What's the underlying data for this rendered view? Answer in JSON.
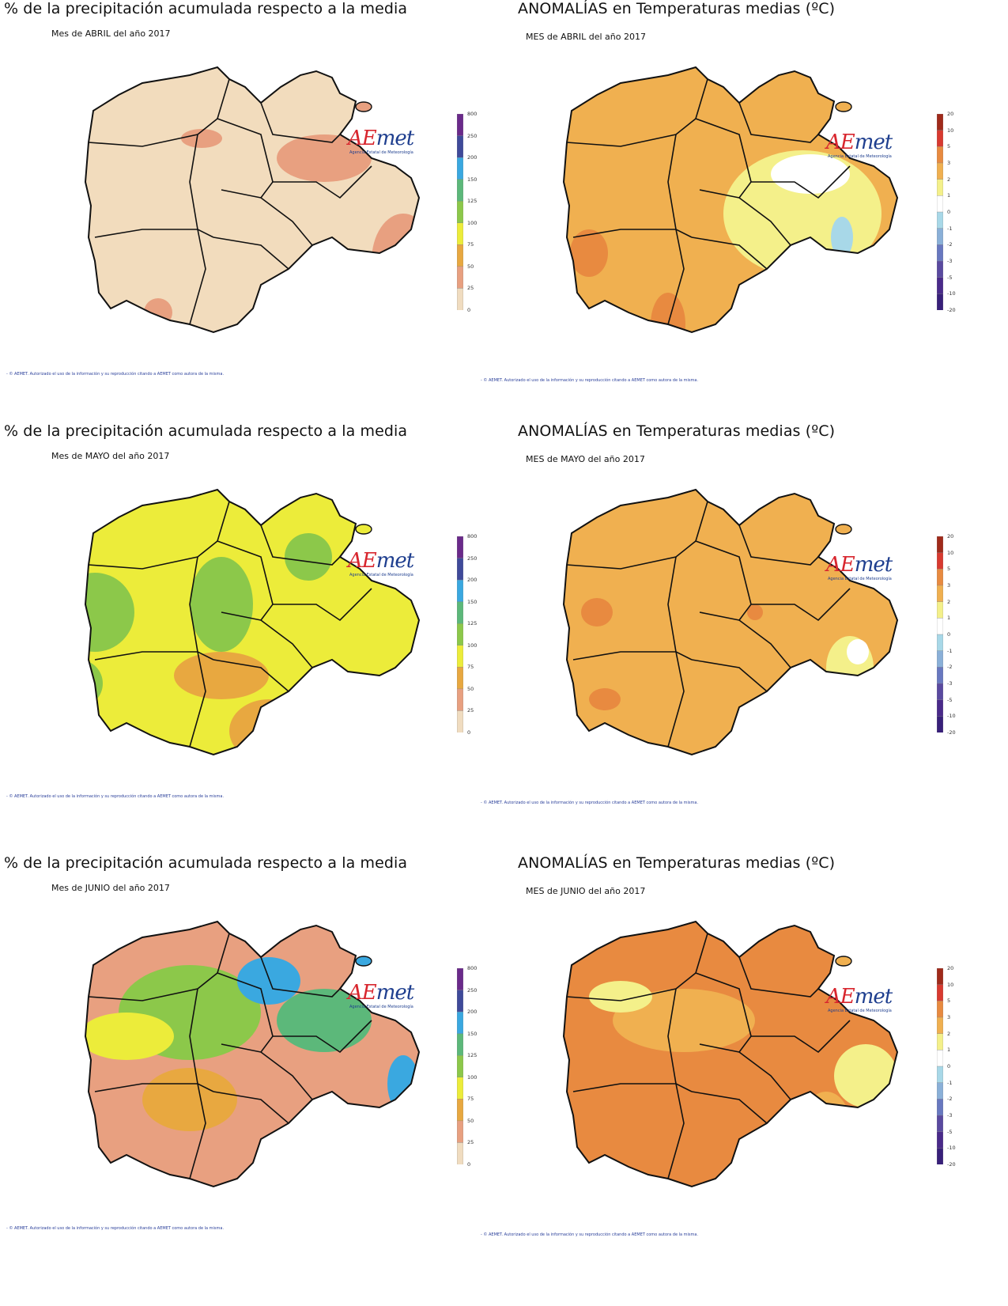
{
  "brand": {
    "logo": "AEmet",
    "tagline": "Agencia Estatal de Meteorología"
  },
  "footer": "- © AEMET. Autorizado el uso de la información y su reproducción citando a AEMET como autora de la misma.",
  "precip_legend": {
    "labels": [
      "800",
      "250",
      "200",
      "150",
      "125",
      "100",
      "75",
      "50",
      "25",
      "0"
    ],
    "colors": [
      "#6a2a8a",
      "#3f4a9a",
      "#3aa8e0",
      "#5cb87a",
      "#8cc84a",
      "#ecec3a",
      "#e8a840",
      "#e8a080",
      "#f0dcc0"
    ]
  },
  "temp_legend": {
    "labels": [
      "20",
      "10",
      "5",
      "3",
      "2",
      "1",
      "0",
      "-1",
      "-2",
      "-3",
      "-5",
      "-10",
      "-20"
    ],
    "colors": [
      "#a02a1a",
      "#d83a30",
      "#e88a40",
      "#f0b050",
      "#f4f08a",
      "#ffffff",
      "#a8d8e8",
      "#8ab0d8",
      "#6878c0",
      "#5a4aa0",
      "#4a2a8a",
      "#38207a"
    ]
  },
  "panels": [
    {
      "id": "prec-abril",
      "title": "% de la precipitación acumulada respecto a la media",
      "subtitle": "Mes de ABRIL del año 2017",
      "kind": "precip",
      "base": "#f2dcbd",
      "blobs": [
        [
          "#e8a080",
          350,
          140,
          60,
          30
        ],
        [
          "#e8a080",
          450,
          270,
          40,
          60
        ],
        [
          "#e8a080",
          140,
          335,
          18,
          18
        ],
        [
          "#e8a080",
          300,
          380,
          20,
          14
        ],
        [
          "#e8a080",
          195,
          115,
          26,
          12
        ]
      ]
    },
    {
      "id": "temp-abril",
      "title": "ANOMALÍAS en Temperaturas medias (ºC)",
      "subtitle": "MES de ABRIL del año 2017",
      "kind": "temp",
      "base": "#f0b050",
      "blobs": [
        [
          "#f4f08a",
          350,
          210,
          100,
          80
        ],
        [
          "#ffffff",
          360,
          160,
          50,
          25
        ],
        [
          "#a8d8e8",
          400,
          240,
          14,
          26
        ],
        [
          "#e88a40",
          180,
          350,
          22,
          40
        ],
        [
          "#e88a40",
          80,
          260,
          24,
          30
        ],
        [
          "#d83a30",
          20,
          210,
          10,
          12
        ],
        [
          "#ffffff",
          170,
          400,
          14,
          12
        ]
      ]
    },
    {
      "id": "prec-mayo",
      "title": "% de la precipitación acumulada respecto a la media",
      "subtitle": "Mes de MAYO del año 2017",
      "kind": "precip",
      "base": "#ecec3a",
      "blobs": [
        [
          "#8cc84a",
          60,
          180,
          50,
          50
        ],
        [
          "#8cc84a",
          220,
          170,
          40,
          60
        ],
        [
          "#8cc84a",
          330,
          110,
          30,
          30
        ],
        [
          "#e8a840",
          220,
          260,
          60,
          30
        ],
        [
          "#e8a840",
          280,
          330,
          50,
          40
        ],
        [
          "#e8a840",
          470,
          300,
          40,
          30
        ],
        [
          "#8cc84a",
          40,
          270,
          30,
          30
        ]
      ]
    },
    {
      "id": "temp-mayo",
      "title": "ANOMALÍAS en Temperaturas medias (ºC)",
      "subtitle": "MES de MAYO del año 2017",
      "kind": "temp",
      "base": "#f0b050",
      "blobs": [
        [
          "#e88a40",
          100,
          290,
          20,
          14
        ],
        [
          "#e88a40",
          290,
          180,
          10,
          10
        ],
        [
          "#f4f08a",
          410,
          250,
          30,
          40
        ],
        [
          "#ffffff",
          420,
          230,
          14,
          16
        ],
        [
          "#f4f08a",
          180,
          420,
          30,
          20
        ],
        [
          "#a8d8e8",
          165,
          425,
          8,
          8
        ],
        [
          "#e88a40",
          90,
          180,
          20,
          18
        ]
      ]
    },
    {
      "id": "prec-junio",
      "title": "% de la precipitación acumulada respecto a la media",
      "subtitle": "Mes de JUNIO del año 2017",
      "kind": "precip",
      "base": "#e8a080",
      "blobs": [
        [
          "#8cc84a",
          180,
          140,
          90,
          60
        ],
        [
          "#5cb87a",
          350,
          150,
          60,
          40
        ],
        [
          "#3aa8e0",
          280,
          100,
          40,
          30
        ],
        [
          "#3aa8e0",
          450,
          230,
          20,
          36
        ],
        [
          "#3f4a9a",
          470,
          260,
          10,
          20
        ],
        [
          "#ecec3a",
          100,
          170,
          60,
          30
        ],
        [
          "#e8a840",
          180,
          250,
          60,
          40
        ],
        [
          "#f2dcbd",
          50,
          380,
          20,
          30
        ]
      ]
    },
    {
      "id": "temp-junio",
      "title": "ANOMALÍAS en Temperaturas medias (ºC)",
      "subtitle": "MES de JUNIO del año 2017",
      "kind": "temp",
      "base": "#e88a40",
      "blobs": [
        [
          "#f0b050",
          200,
          150,
          90,
          40
        ],
        [
          "#f4f08a",
          120,
          120,
          40,
          20
        ],
        [
          "#f4f08a",
          430,
          220,
          40,
          40
        ],
        [
          "#f0b050",
          380,
          280,
          30,
          40
        ],
        [
          "#f0b050",
          170,
          390,
          40,
          30
        ],
        [
          "#f4f08a",
          170,
          400,
          16,
          12
        ]
      ]
    }
  ]
}
